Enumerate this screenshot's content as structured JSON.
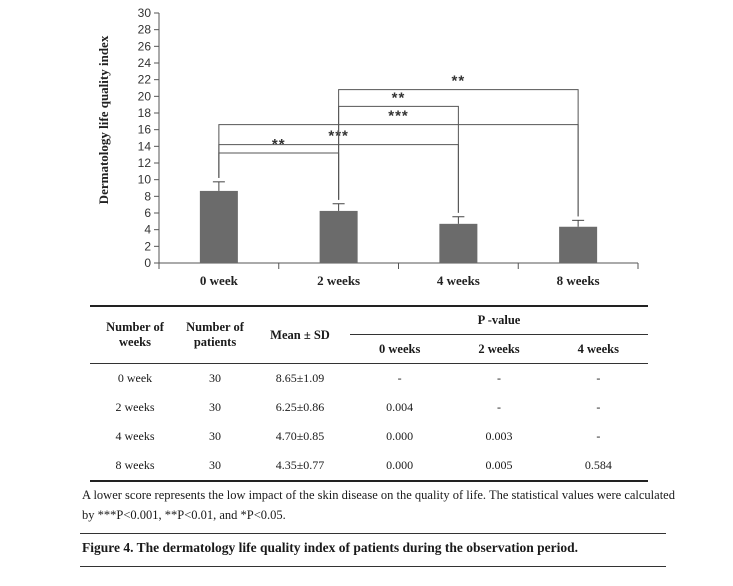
{
  "chart_data": {
    "type": "bar",
    "categories": [
      "0 week",
      "2 weeks",
      "4 weeks",
      "8 weeks"
    ],
    "values": [
      8.65,
      6.25,
      4.7,
      4.35
    ],
    "errors": [
      1.09,
      0.86,
      0.85,
      0.77
    ],
    "ylabel": "Dermatology life quality index",
    "xlabel": "",
    "ylim": [
      0,
      30
    ],
    "yticks": [
      "0",
      "2",
      "4",
      "6",
      "8",
      "10",
      "12",
      "14",
      "16",
      "18",
      "20",
      "22",
      "24",
      "26",
      "28",
      "30"
    ],
    "bar_color": "#6b6b6b",
    "significance": [
      {
        "from": 0,
        "to": 1,
        "label": "**"
      },
      {
        "from": 0,
        "to": 2,
        "label": "***"
      },
      {
        "from": 0,
        "to": 3,
        "label": "***"
      },
      {
        "from": 1,
        "to": 2,
        "label": "**"
      },
      {
        "from": 1,
        "to": 3,
        "label": "**"
      }
    ],
    "grid": false,
    "legend": "none"
  },
  "table": {
    "headers": {
      "weeks": "Number of weeks",
      "patients": "Number of patients",
      "mean": "Mean ± SD",
      "pvalue": "P -value",
      "p0": "0 weeks",
      "p2": "2 weeks",
      "p4": "4 weeks"
    },
    "rows": [
      {
        "weeks": "0  week",
        "patients": "30",
        "mean": "8.65±1.09",
        "p0": "-",
        "p2": "-",
        "p4": "-"
      },
      {
        "weeks": "2 weeks",
        "patients": "30",
        "mean": "6.25±0.86",
        "p0": "0.004",
        "p2": "-",
        "p4": "-"
      },
      {
        "weeks": "4 weeks",
        "patients": "30",
        "mean": "4.70±0.85",
        "p0": "0.000",
        "p2": "0.003",
        "p4": "-"
      },
      {
        "weeks": "8 weeks",
        "patients": "30",
        "mean": "4.35±0.77",
        "p0": "0.000",
        "p2": "0.005",
        "p4": "0.584"
      }
    ]
  },
  "note": "A lower score represents the low impact of the skin disease on the quality of life. The statistical values were calculated by ***P<0.001, **P<0.01, and *P<0.05.",
  "caption": "Figure 4. The dermatology life quality index of patients during the observation period."
}
